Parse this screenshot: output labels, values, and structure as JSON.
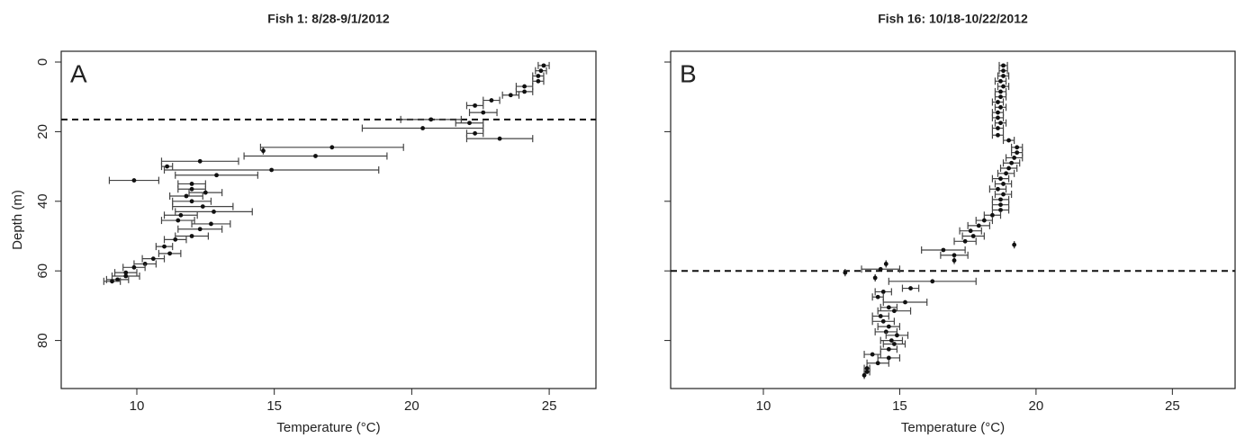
{
  "chart_data": [
    {
      "type": "scatter",
      "title": "Fish 1: 8/28-9/1/2012",
      "panel_label": "A",
      "xlabel": "Temperature (°C)",
      "ylabel": "Depth (m)",
      "x": [
        24.8,
        24.7,
        24.6,
        24.6,
        24.1,
        24.1,
        23.6,
        22.9,
        22.3,
        22.6,
        20.7,
        22.1,
        20.4,
        22.3,
        23.2,
        17.1,
        14.6,
        16.5,
        12.3,
        11.1,
        14.9,
        12.9,
        9.9,
        12.0,
        12.0,
        12.5,
        11.8,
        12.0,
        12.4,
        12.8,
        11.6,
        11.5,
        12.7,
        12.3,
        12.0,
        11.4,
        11.0,
        11.2,
        10.6,
        10.3,
        9.9,
        9.6,
        9.6,
        9.3,
        9.1
      ],
      "y": [
        1,
        2.5,
        4,
        5.5,
        7,
        8.5,
        9.5,
        11,
        12.5,
        14.5,
        16.5,
        17.5,
        19,
        20.5,
        22,
        24.5,
        25.5,
        27,
        28.5,
        30,
        31,
        32.5,
        34,
        35,
        36.5,
        37.5,
        38.5,
        40,
        41.5,
        43,
        44,
        45.5,
        46.5,
        48,
        50,
        51,
        53,
        55,
        56.5,
        58,
        59,
        60.5,
        61.5,
        62.5,
        63
      ],
      "err": [
        0.2,
        0.2,
        0.2,
        0.2,
        0.3,
        0.3,
        0.3,
        0.3,
        0.3,
        0.5,
        1.1,
        0.5,
        2.2,
        0.3,
        1.2,
        2.6,
        0,
        2.6,
        1.4,
        0.2,
        3.9,
        1.5,
        0.9,
        0.5,
        0.5,
        0.6,
        0.6,
        0.7,
        1.1,
        1.4,
        0.6,
        0.6,
        0.7,
        0.8,
        0.6,
        0.4,
        0.3,
        0.4,
        0.4,
        0.4,
        0.4,
        0.4,
        0.5,
        0.4,
        0.3
      ],
      "xlim": [
        7.25,
        26.7
      ],
      "ylim": [
        -3.1,
        93.8
      ],
      "invert_y": true,
      "xticks": [
        10,
        15,
        20,
        25
      ],
      "yticks": [
        0,
        20,
        40,
        60,
        80
      ],
      "show_ytick_labels": true,
      "hline": 16.5,
      "color": "#111111"
    },
    {
      "type": "scatter",
      "title": "Fish 16: 10/18-10/22/2012",
      "panel_label": "B",
      "xlabel": "Temperature (°C)",
      "x": [
        18.8,
        18.8,
        18.8,
        18.7,
        18.8,
        18.7,
        18.7,
        18.6,
        18.7,
        18.6,
        18.6,
        18.7,
        18.6,
        18.6,
        19.0,
        19.3,
        19.3,
        19.2,
        19.1,
        19.0,
        18.9,
        18.7,
        18.8,
        18.6,
        18.8,
        18.7,
        18.7,
        18.7,
        18.4,
        18.1,
        17.9,
        17.6,
        17.7,
        17.4,
        19.2,
        16.6,
        17.0,
        17.0,
        14.5,
        14.3,
        13.0,
        14.1,
        16.2,
        15.4,
        14.4,
        14.2,
        15.2,
        14.6,
        14.8,
        14.3,
        14.4,
        14.6,
        14.5,
        14.9,
        14.7,
        14.8,
        14.6,
        14.0,
        14.6,
        14.2,
        13.8,
        13.8,
        13.7
      ],
      "y": [
        1,
        2.5,
        4,
        5.5,
        7,
        8.5,
        10,
        11.5,
        13,
        14.5,
        16,
        17.5,
        19,
        21,
        22.5,
        24.5,
        26,
        27.5,
        29,
        30.5,
        32,
        33.5,
        35,
        36.5,
        38,
        39.5,
        41,
        42.5,
        44,
        45.5,
        47,
        48.5,
        50,
        51.5,
        52.5,
        54,
        55.5,
        57,
        58,
        59.5,
        60.5,
        62,
        63,
        65,
        66,
        67.5,
        69,
        70.5,
        71.5,
        73,
        74.5,
        76,
        77.5,
        78.5,
        80,
        81,
        82.5,
        84,
        85,
        86.5,
        88,
        89,
        90
      ],
      "err": [
        0.15,
        0.15,
        0.2,
        0.2,
        0.2,
        0.2,
        0.2,
        0.2,
        0.2,
        0.2,
        0.2,
        0.2,
        0.2,
        0.2,
        0.2,
        0.2,
        0.2,
        0.3,
        0.3,
        0.3,
        0.3,
        0.3,
        0.3,
        0.3,
        0.3,
        0.3,
        0.3,
        0.3,
        0.3,
        0.3,
        0.4,
        0.4,
        0.4,
        0.4,
        0,
        0.8,
        0.5,
        0,
        0,
        0.7,
        0,
        0,
        1.6,
        0.3,
        0.3,
        0.2,
        0.8,
        0.3,
        0.6,
        0.3,
        0.4,
        0.4,
        0.4,
        0.4,
        0.4,
        0.4,
        0.3,
        0.3,
        0.4,
        0.4,
        0.1,
        0.1,
        0
      ],
      "xlim": [
        6.6,
        27.3
      ],
      "ylim": [
        -3.1,
        93.8
      ],
      "invert_y": true,
      "xticks": [
        10,
        15,
        20,
        25
      ],
      "yticks": [
        0,
        20,
        40,
        60,
        80
      ],
      "show_ytick_labels": false,
      "hline": 60,
      "color": "#111111"
    }
  ]
}
